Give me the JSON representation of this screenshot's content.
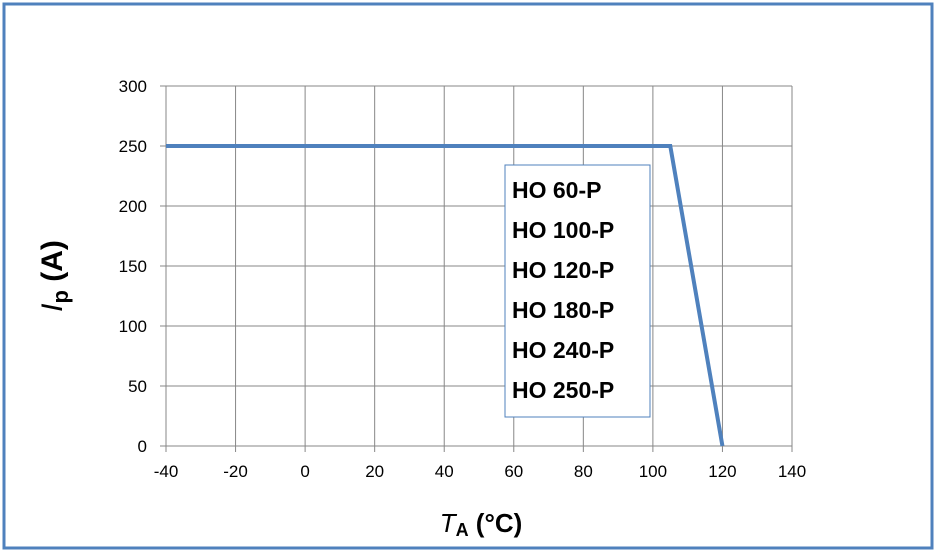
{
  "colors": {
    "frame_border": "#4f81bd",
    "series_line": "#4f81bd",
    "legend_border": "#4f81bd",
    "grid": "#878787",
    "axis_text": "#000000"
  },
  "chart_data": {
    "type": "line",
    "title": "",
    "xlabel": {
      "main": "T",
      "sub": "A",
      "unit": " (°C)"
    },
    "ylabel": {
      "main": "I",
      "sub": "p",
      "unit": " (A)"
    },
    "xlim": [
      -40,
      140
    ],
    "ylim": [
      0,
      300
    ],
    "xticks": [
      -40,
      -20,
      0,
      20,
      40,
      60,
      80,
      100,
      120,
      140
    ],
    "yticks": [
      0,
      50,
      100,
      150,
      200,
      250,
      300
    ],
    "grid": true,
    "series": [
      {
        "x": [
          -40,
          105,
          120
        ],
        "y": [
          250,
          250,
          0
        ]
      }
    ],
    "annotation_box": {
      "lines": [
        "HO 60-P",
        "HO 100-P",
        "HO 120-P",
        "HO 180-P",
        "HO 240-P",
        "HO 250-P"
      ]
    }
  }
}
